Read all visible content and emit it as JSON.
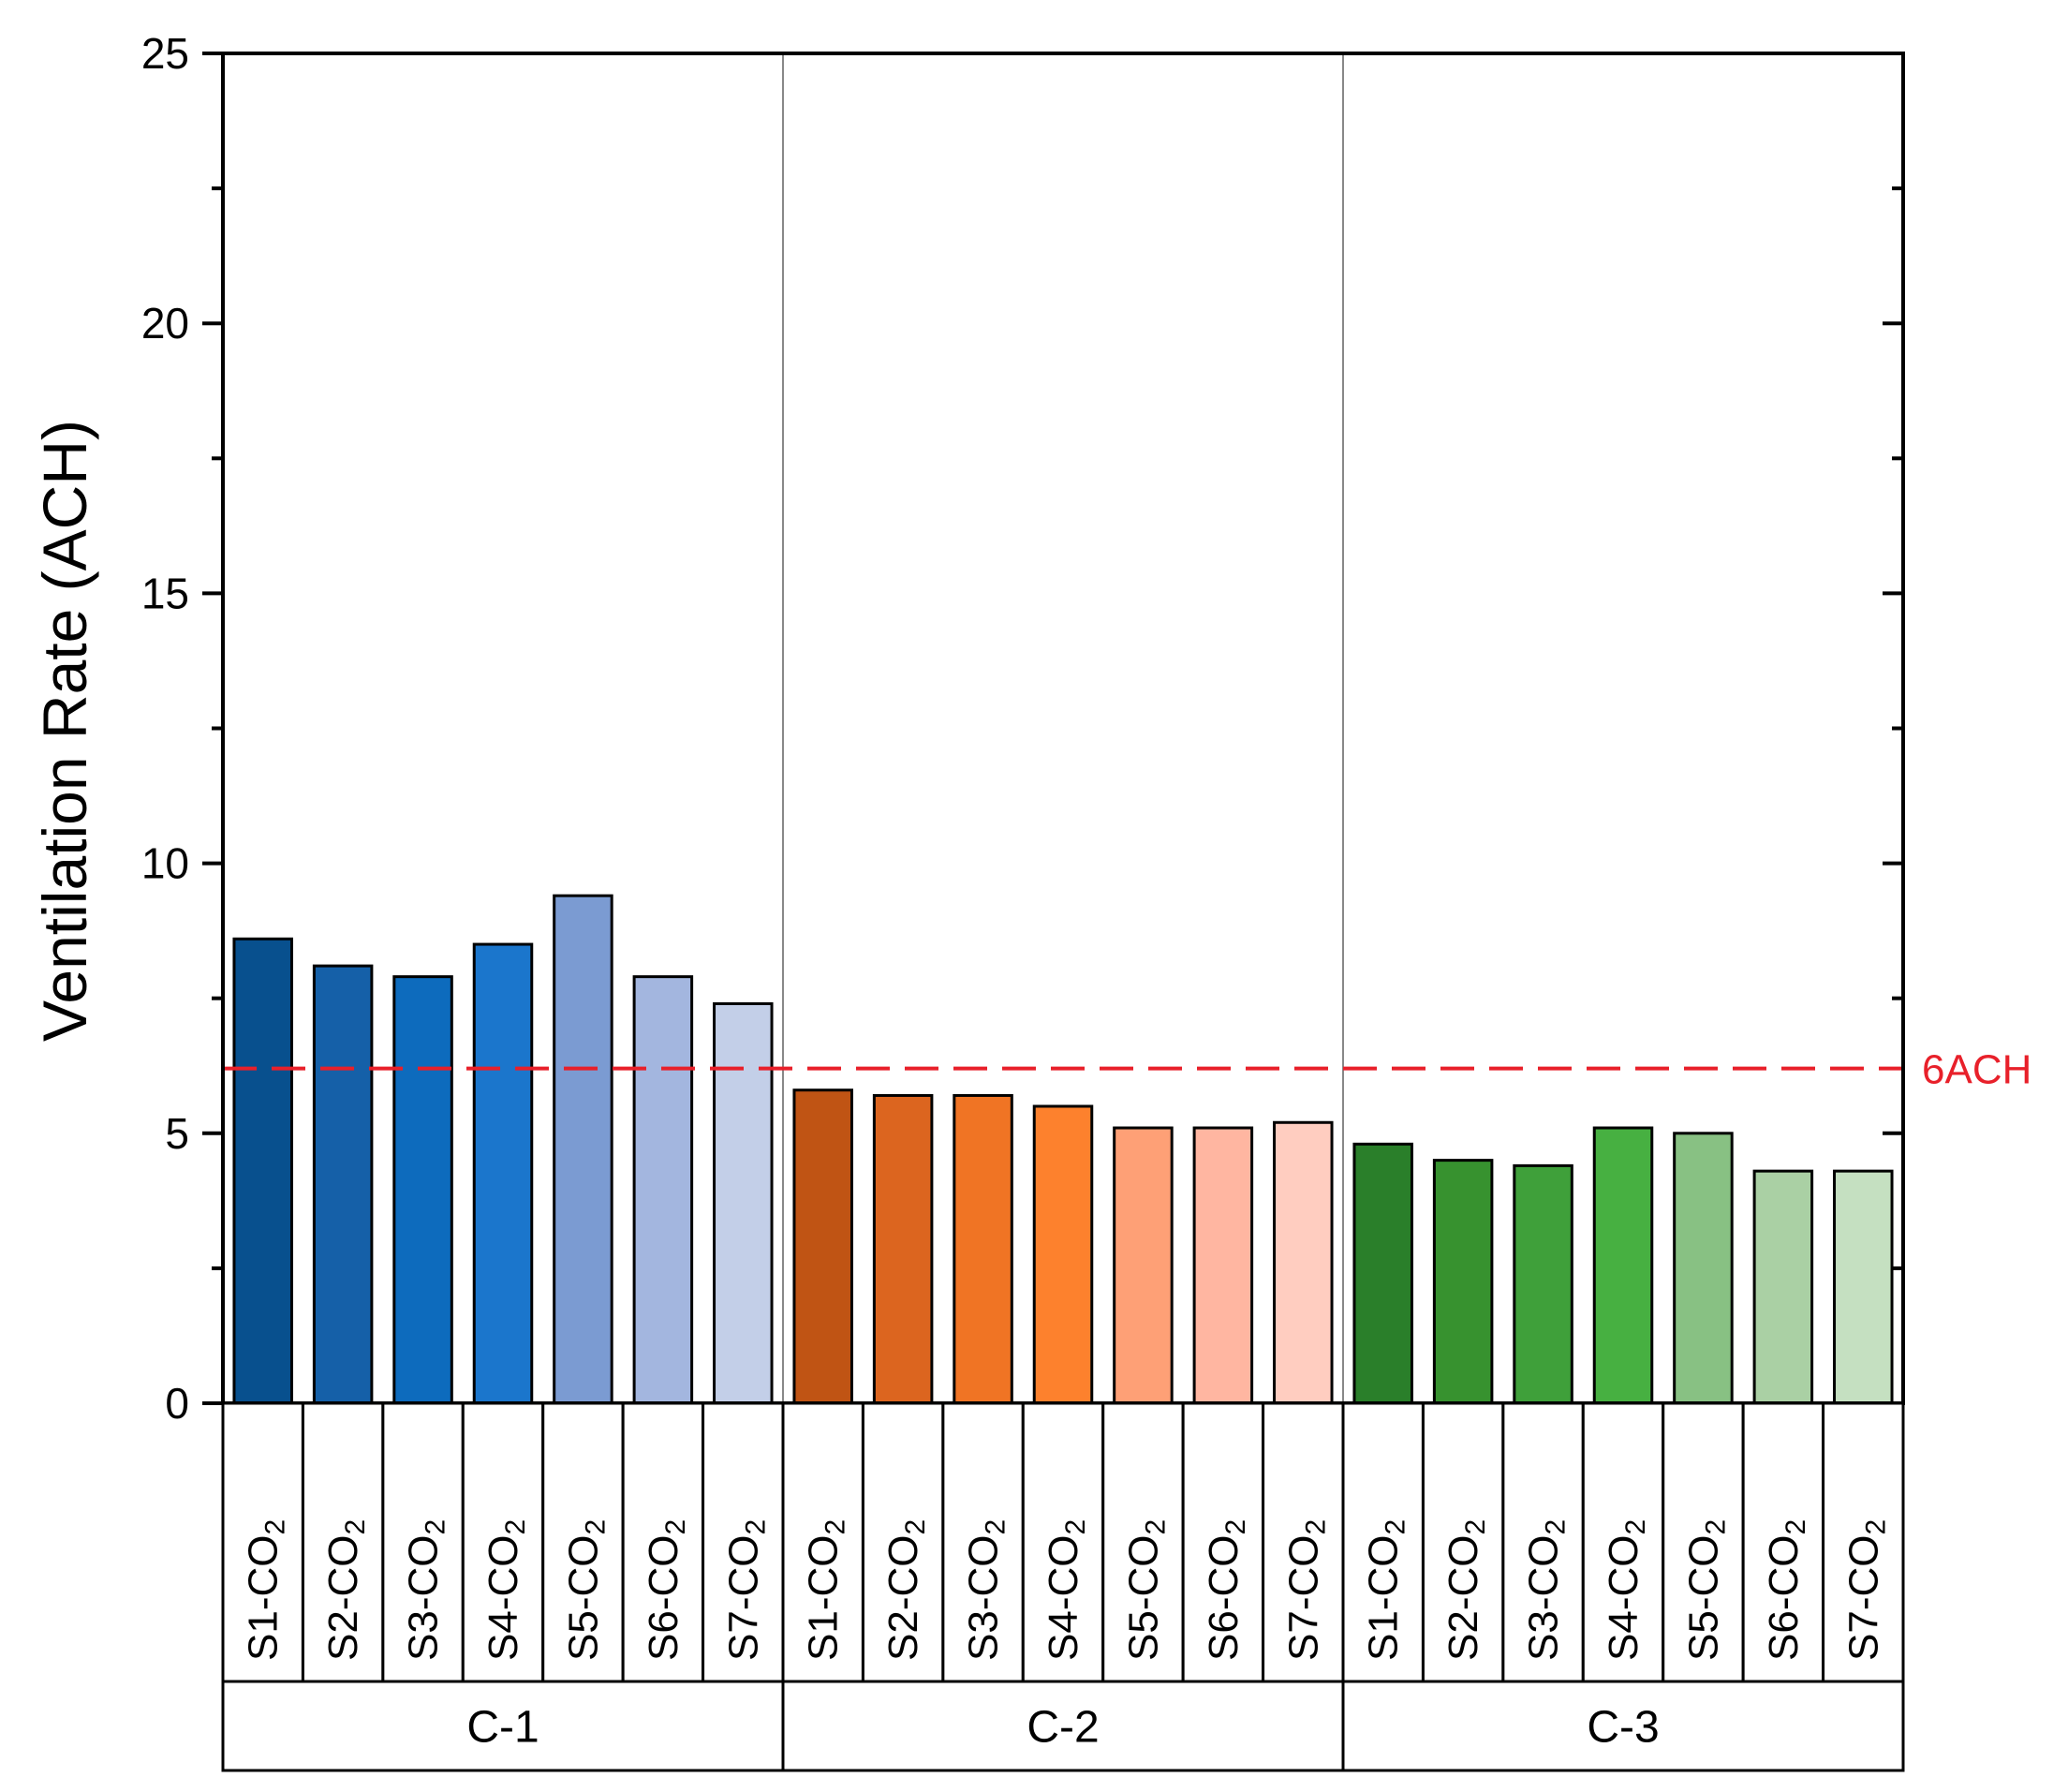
{
  "chart_data": {
    "type": "bar",
    "ylabel": "Ventilation Rate (ACH)",
    "ylim": [
      0,
      25
    ],
    "yticks": [
      "0",
      "5",
      "10",
      "15",
      "20",
      "25"
    ],
    "reference_line": {
      "value": 6.2,
      "label": "6ACH",
      "color": "#e8202a"
    },
    "groups": [
      {
        "name": "C-1",
        "categories": [
          "S1-CO2",
          "S2-CO2",
          "S3-CO2",
          "S4-CO2",
          "S5-CO2",
          "S6-CO2",
          "S7-CO2"
        ],
        "values": [
          8.6,
          8.1,
          7.9,
          8.5,
          9.4,
          7.9,
          7.4
        ],
        "colors": [
          "#08508e",
          "#1560a8",
          "#0d6bbd",
          "#1b76cc",
          "#7b9bd2",
          "#a3b6df",
          "#c3cfe8"
        ]
      },
      {
        "name": "C-2",
        "categories": [
          "S1-CO2",
          "S2-CO2",
          "S3-CO2",
          "S4-CO2",
          "S5-CO2",
          "S6-CO2",
          "S7-CO2"
        ],
        "values": [
          5.8,
          5.7,
          5.7,
          5.5,
          5.1,
          5.1,
          5.2
        ],
        "colors": [
          "#c05414",
          "#dc651f",
          "#f07424",
          "#fd812d",
          "#fea076",
          "#ffb6a1",
          "#ffcdc0"
        ]
      },
      {
        "name": "C-3",
        "categories": [
          "S1-CO2",
          "S2-CO2",
          "S3-CO2",
          "S4-CO2",
          "S5-CO2",
          "S6-CO2",
          "S7-CO2"
        ],
        "values": [
          4.8,
          4.5,
          4.4,
          5.1,
          5.0,
          4.3,
          4.3
        ],
        "colors": [
          "#2a7f2a",
          "#37922f",
          "#3fa03a",
          "#47b041",
          "#88c183",
          "#aad0a4",
          "#c5e0c1"
        ]
      }
    ]
  }
}
